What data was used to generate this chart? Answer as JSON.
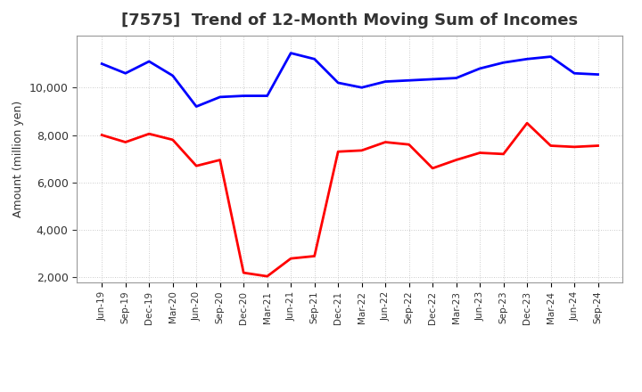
{
  "title": "[7575]  Trend of 12-Month Moving Sum of Incomes",
  "ylabel": "Amount (million yen)",
  "labels": [
    "Jun-19",
    "Sep-19",
    "Dec-19",
    "Mar-20",
    "Jun-20",
    "Sep-20",
    "Dec-20",
    "Mar-21",
    "Jun-21",
    "Sep-21",
    "Dec-21",
    "Mar-22",
    "Jun-22",
    "Sep-22",
    "Dec-22",
    "Mar-23",
    "Jun-23",
    "Sep-23",
    "Dec-23",
    "Mar-24",
    "Jun-24",
    "Sep-24"
  ],
  "ordinary_income": [
    11000,
    10600,
    11100,
    10500,
    9200,
    9600,
    9650,
    9650,
    11450,
    11200,
    10200,
    10000,
    10250,
    10300,
    10350,
    10400,
    10800,
    11050,
    11200,
    11300,
    10600,
    10550
  ],
  "net_income": [
    8000,
    7700,
    8050,
    7800,
    6700,
    6950,
    2200,
    2050,
    2800,
    2900,
    7300,
    7350,
    7700,
    7600,
    6600,
    6950,
    7250,
    7200,
    8500,
    7550,
    7500,
    7550
  ],
  "ordinary_color": "#0000FF",
  "net_color": "#FF0000",
  "ylim_min": 1800,
  "ylim_max": 12200,
  "yticks": [
    2000,
    4000,
    6000,
    8000,
    10000
  ],
  "background_color": "#FFFFFF",
  "grid_color": "#BBBBBB",
  "title_fontsize": 13,
  "legend_fontsize": 10
}
